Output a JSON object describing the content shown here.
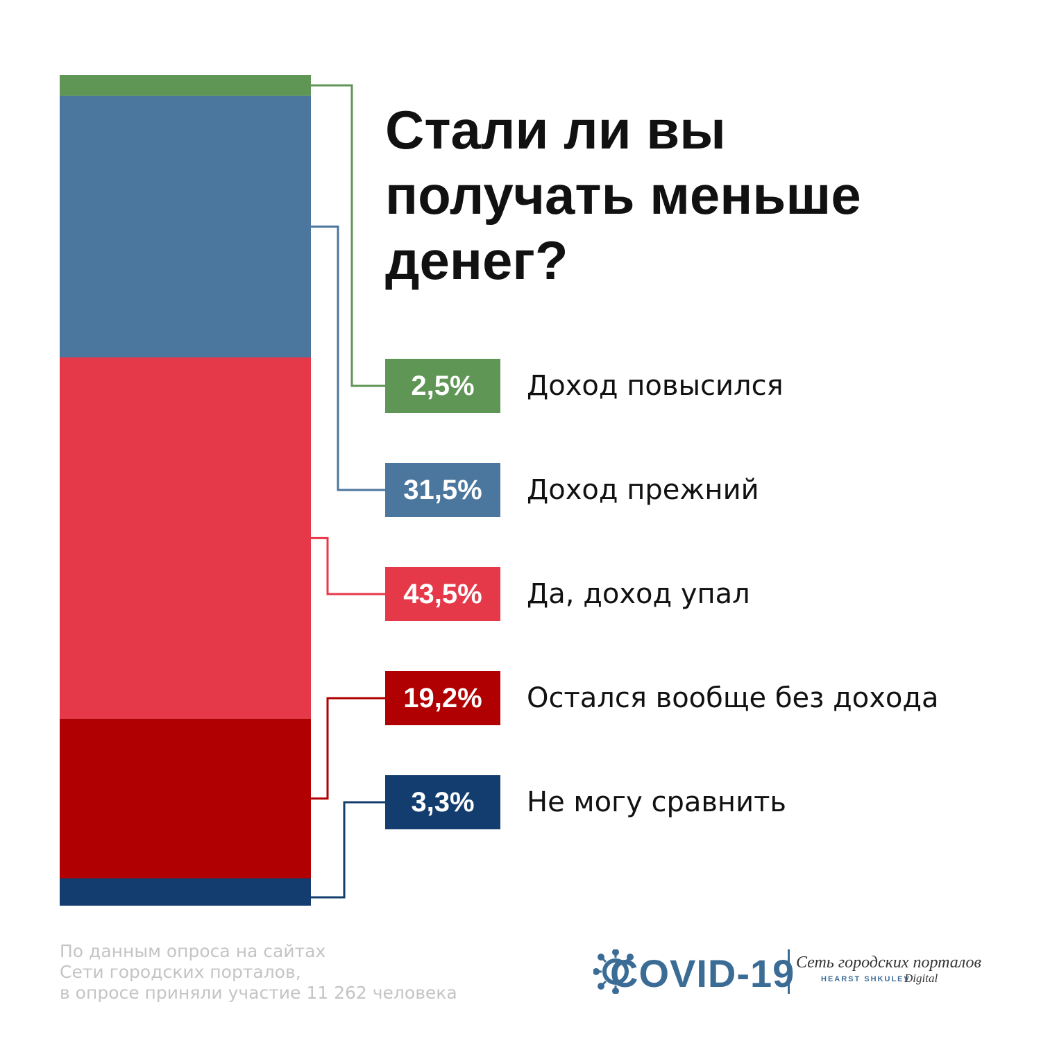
{
  "title_lines": [
    "Стали ли вы",
    "получать меньше",
    "денег?"
  ],
  "chart_data": {
    "type": "bar",
    "stacked": true,
    "title": "Стали ли вы получать меньше денег?",
    "categories": [
      "Доход повысился",
      "Доход прежний",
      "Да, доход упал",
      "Остался вообще без дохода",
      "Не могу сравнить"
    ],
    "values": [
      2.5,
      31.5,
      43.5,
      19.2,
      3.3
    ],
    "value_labels": [
      "2,5%",
      "31,5%",
      "43,5%",
      "19,2%",
      "3,3%"
    ],
    "colors": [
      "#5f9555",
      "#4b769e",
      "#e53849",
      "#b00002",
      "#123d6e"
    ],
    "ylim": [
      0,
      100
    ],
    "grid": false,
    "legend": "right"
  },
  "source_lines": [
    "По данным опроса на сайтах",
    "Сети городских порталов,",
    "в опросе приняли участие 11 262 человека"
  ],
  "logo": {
    "covid_text": "COVID-19",
    "network_text": "Сеть городских порталов",
    "hearst_text": "HEARST SHKULEV",
    "digital_text": "Digital",
    "accent_color": "#3b6c96"
  }
}
